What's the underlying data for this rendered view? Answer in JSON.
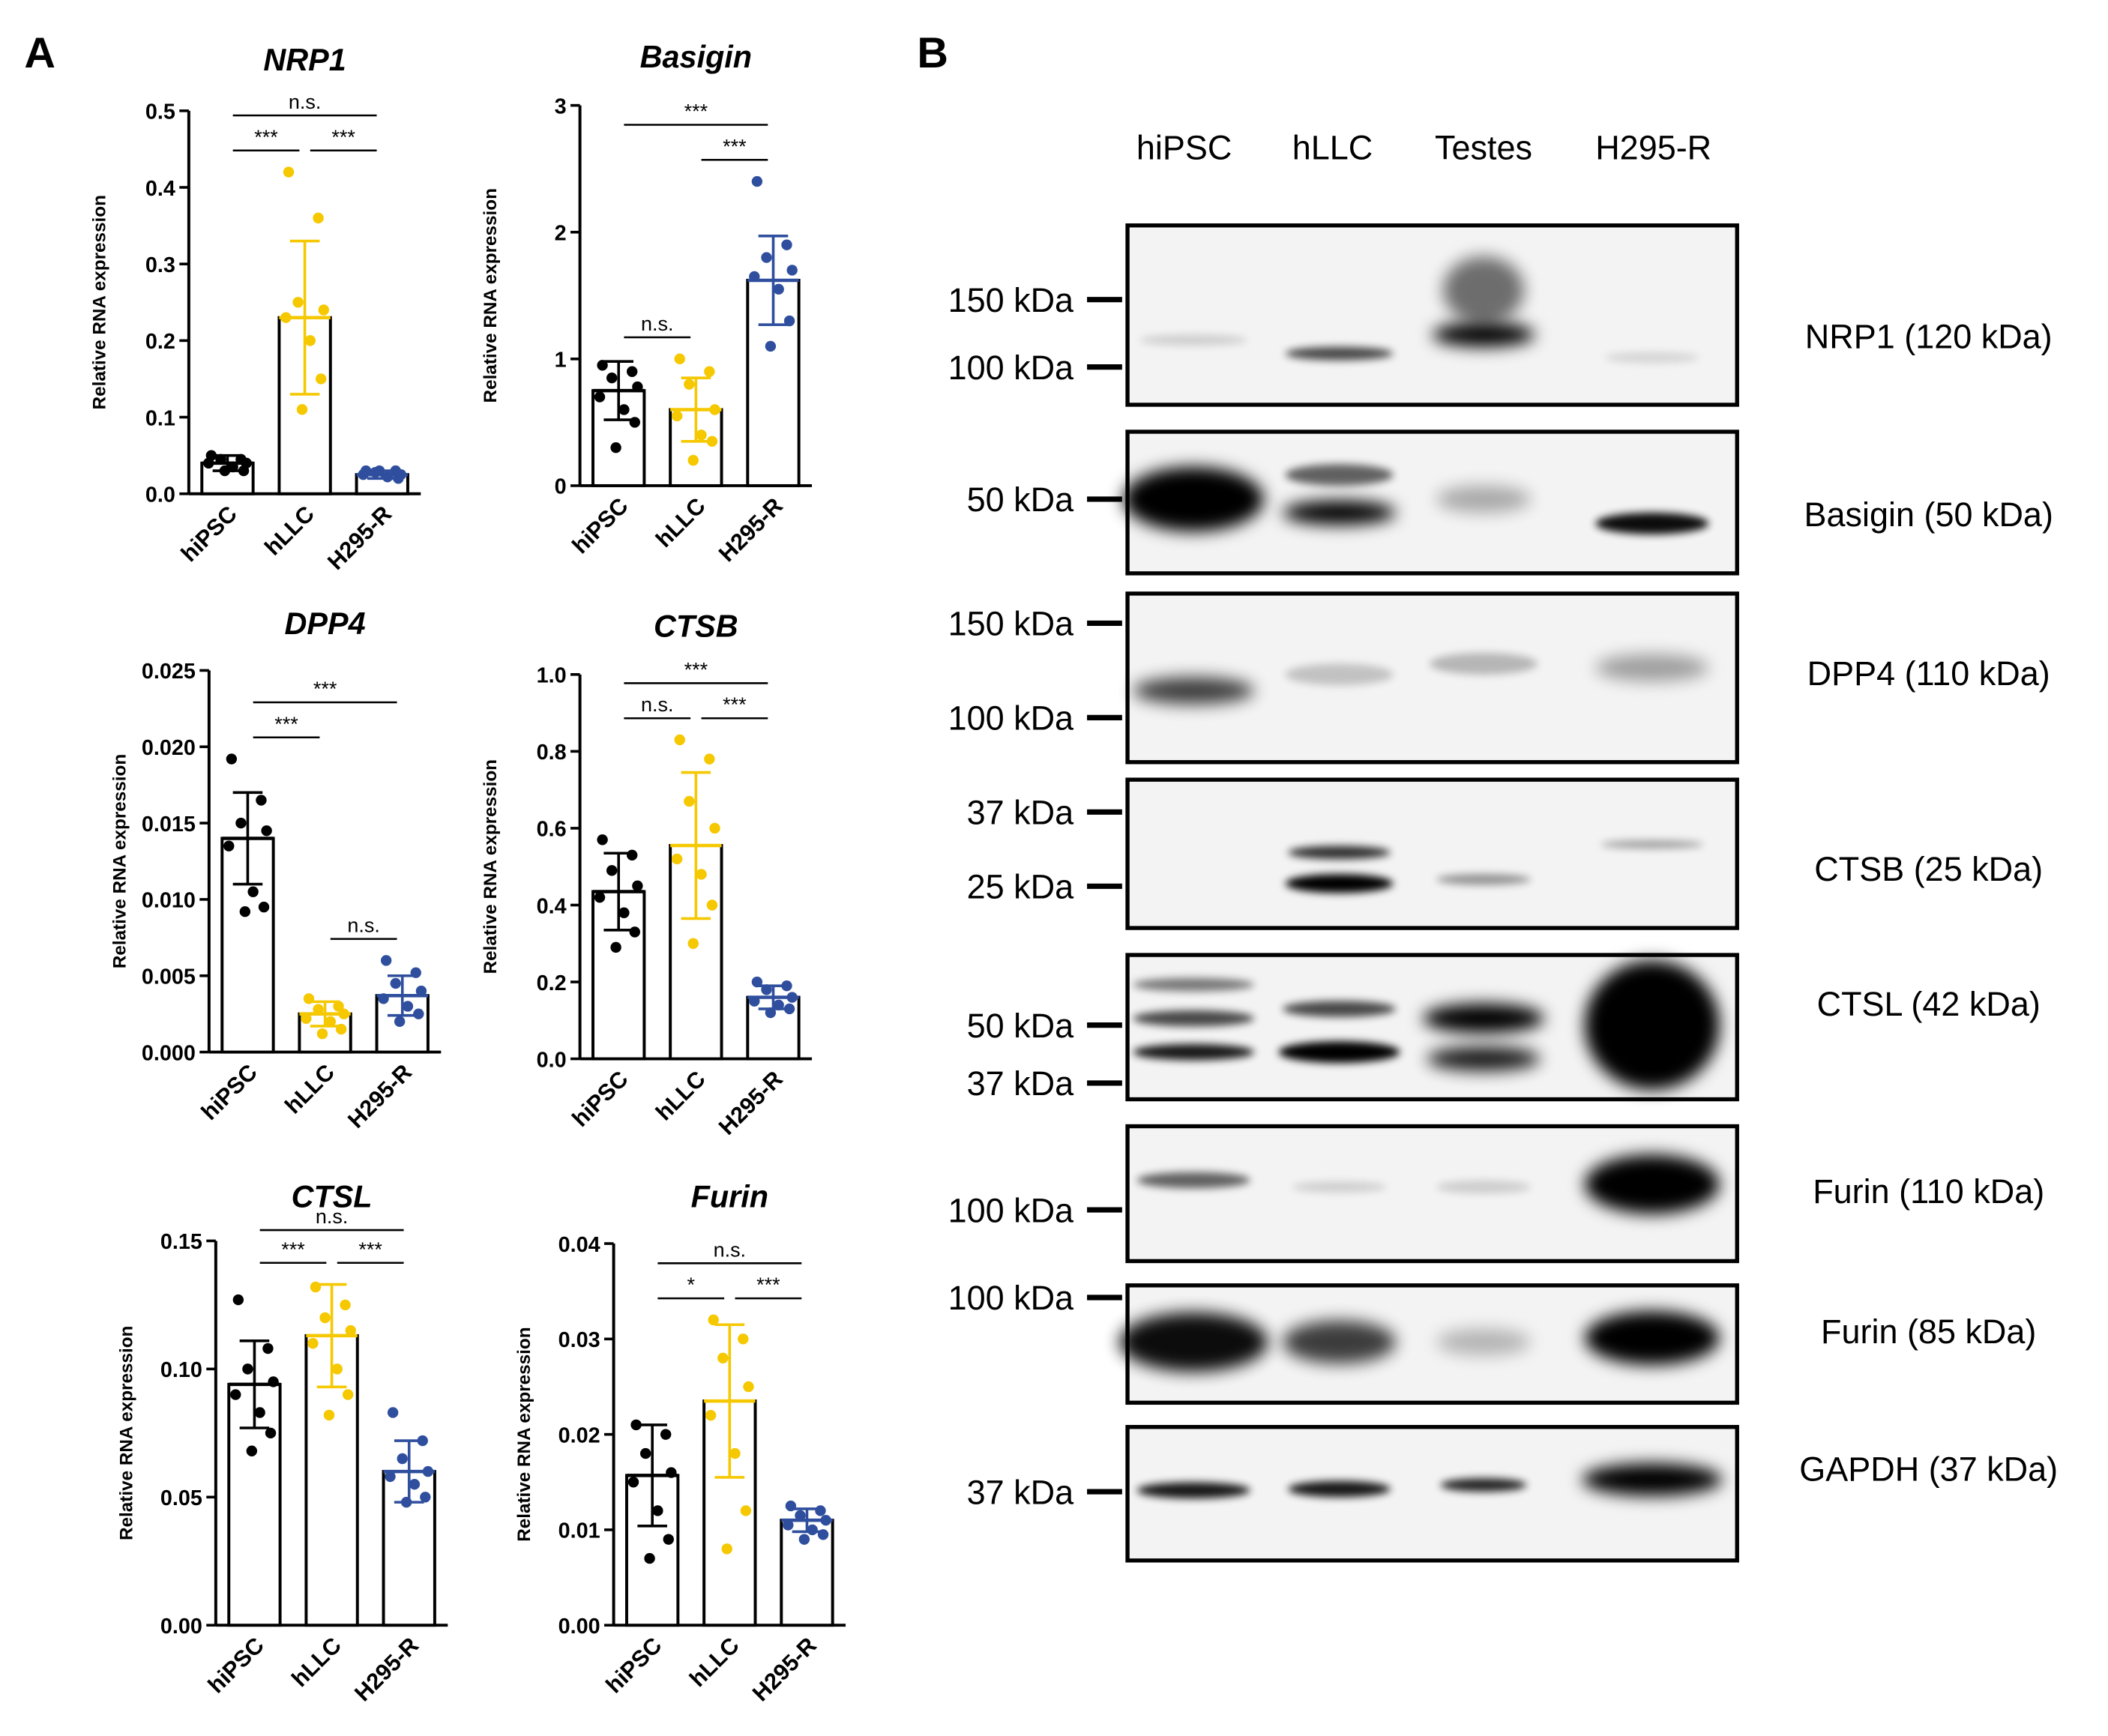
{
  "panel_labels": [
    "A",
    "B"
  ],
  "chart_data": [
    {
      "type": "bar",
      "title": "NRP1",
      "y_label": "Relative RNA expression",
      "categories": [
        "hiPSC",
        "hLLC",
        "H295-R"
      ],
      "colors": [
        "#000000",
        "#f5c800",
        "#2f4f9e"
      ],
      "values": [
        0.04,
        0.23,
        0.025
      ],
      "errors": [
        0.01,
        0.1,
        0.005
      ],
      "points": [
        [
          0.05,
          0.045,
          0.045,
          0.04,
          0.04,
          0.035,
          0.03,
          0.03
        ],
        [
          0.42,
          0.36,
          0.25,
          0.24,
          0.23,
          0.2,
          0.15,
          0.11
        ],
        [
          0.03,
          0.03,
          0.028,
          0.025,
          0.025,
          0.022,
          0.02,
          0.03
        ]
      ],
      "ylim": [
        0,
        0.5
      ],
      "yticks": [
        {
          "value": 0,
          "label": "0.0"
        },
        0.1,
        0.2,
        0.3,
        0.4,
        0.5
      ],
      "annotations": [
        {
          "pair": [
            "hiPSC",
            "H295-R"
          ],
          "label": "n.s."
        },
        {
          "pair": [
            "hiPSC",
            "hLLC"
          ],
          "label": "***"
        },
        {
          "pair": [
            "hLLC",
            "H295-R"
          ],
          "label": "***"
        }
      ]
    },
    {
      "type": "bar",
      "title": "Basigin",
      "y_label": "Relative RNA expression",
      "categories": [
        "hiPSC",
        "hLLC",
        "H295-R"
      ],
      "colors": [
        "#000000",
        "#f5c800",
        "#2f4f9e"
      ],
      "values": [
        0.75,
        0.6,
        1.62
      ],
      "errors": [
        0.23,
        0.25,
        0.35
      ],
      "points": [
        [
          0.95,
          0.9,
          0.85,
          0.78,
          0.7,
          0.6,
          0.5,
          0.3
        ],
        [
          1.0,
          0.9,
          0.8,
          0.6,
          0.55,
          0.4,
          0.35,
          0.2
        ],
        [
          2.4,
          1.9,
          1.8,
          1.7,
          1.65,
          1.55,
          1.3,
          1.1
        ]
      ],
      "ylim": [
        0,
        3
      ],
      "yticks": [
        0,
        1,
        2,
        3
      ],
      "annotations": [
        {
          "pair": [
            "hiPSC",
            "H295-R"
          ],
          "label": "***"
        },
        {
          "pair": [
            "hLLC",
            "H295-R"
          ],
          "label": "***"
        },
        {
          "pair": [
            "hiPSC",
            "hLLC"
          ],
          "label": "n.s."
        }
      ]
    },
    {
      "type": "bar",
      "title": "DPP4",
      "y_label": "Relative RNA expression",
      "categories": [
        "hiPSC",
        "hLLC",
        "H295-R"
      ],
      "colors": [
        "#000000",
        "#f5c800",
        "#2f4f9e"
      ],
      "values": [
        0.014,
        0.0025,
        0.0037
      ],
      "errors": [
        0.003,
        0.0008,
        0.0013
      ],
      "points": [
        [
          0.0192,
          0.0165,
          0.015,
          0.0145,
          0.0135,
          0.0105,
          0.0095,
          0.0092
        ],
        [
          0.0035,
          0.003,
          0.0028,
          0.0025,
          0.0022,
          0.002,
          0.0015,
          0.0012
        ],
        [
          0.006,
          0.0052,
          0.0045,
          0.004,
          0.0035,
          0.003,
          0.0025,
          0.002
        ]
      ],
      "ylim": [
        0,
        0.025
      ],
      "yticks": [
        {
          "value": 0,
          "label": "0.000"
        },
        0.005,
        {
          "value": 0.01,
          "label": "0.010"
        },
        0.015,
        {
          "value": 0.02,
          "label": "0.020"
        },
        0.025
      ],
      "annotations": [
        {
          "pair": [
            "hiPSC",
            "H295-R"
          ],
          "label": "***"
        },
        {
          "pair": [
            "hiPSC",
            "hLLC"
          ],
          "label": "***"
        },
        {
          "pair": [
            "hLLC",
            "H295-R"
          ],
          "label": "n.s."
        }
      ]
    },
    {
      "type": "bar",
      "title": "CTSB",
      "y_label": "Relative RNA expression",
      "categories": [
        "hiPSC",
        "hLLC",
        "H295-R"
      ],
      "colors": [
        "#000000",
        "#f5c800",
        "#2f4f9e"
      ],
      "values": [
        0.435,
        0.555,
        0.16
      ],
      "errors": [
        0.1,
        0.19,
        0.03
      ],
      "points": [
        [
          0.57,
          0.53,
          0.49,
          0.45,
          0.42,
          0.38,
          0.33,
          0.29
        ],
        [
          0.83,
          0.78,
          0.67,
          0.6,
          0.52,
          0.48,
          0.4,
          0.3
        ],
        [
          0.2,
          0.19,
          0.18,
          0.16,
          0.15,
          0.14,
          0.13,
          0.12
        ]
      ],
      "ylim": [
        0,
        1.0
      ],
      "yticks": [
        {
          "value": 0,
          "label": "0.0"
        },
        0.2,
        0.4,
        0.6,
        0.8,
        {
          "value": 1.0,
          "label": "1.0"
        }
      ],
      "annotations": [
        {
          "pair": [
            "hiPSC",
            "H295-R"
          ],
          "label": "***"
        },
        {
          "pair": [
            "hiPSC",
            "hLLC"
          ],
          "label": "n.s."
        },
        {
          "pair": [
            "hLLC",
            "H295-R"
          ],
          "label": "***"
        }
      ]
    },
    {
      "type": "bar",
      "title": "CTSL",
      "y_label": "Relative RNA expression",
      "categories": [
        "hiPSC",
        "hLLC",
        "H295-R"
      ],
      "colors": [
        "#000000",
        "#f5c800",
        "#2f4f9e"
      ],
      "values": [
        0.094,
        0.113,
        0.06
      ],
      "errors": [
        0.017,
        0.02,
        0.012
      ],
      "points": [
        [
          0.127,
          0.108,
          0.1,
          0.095,
          0.09,
          0.083,
          0.075,
          0.068
        ],
        [
          0.132,
          0.125,
          0.12,
          0.115,
          0.11,
          0.1,
          0.09,
          0.082
        ],
        [
          0.083,
          0.072,
          0.065,
          0.06,
          0.058,
          0.055,
          0.05,
          0.048
        ]
      ],
      "ylim": [
        0,
        0.15
      ],
      "yticks": [
        {
          "value": 0,
          "label": "0.00"
        },
        0.05,
        {
          "value": 0.1,
          "label": "0.10"
        },
        0.15
      ],
      "annotations": [
        {
          "pair": [
            "hiPSC",
            "H295-R"
          ],
          "label": "n.s."
        },
        {
          "pair": [
            "hiPSC",
            "hLLC"
          ],
          "label": "***"
        },
        {
          "pair": [
            "hLLC",
            "H295-R"
          ],
          "label": "***"
        }
      ]
    },
    {
      "type": "bar",
      "title": "Furin",
      "y_label": "Relative RNA expression",
      "categories": [
        "hiPSC",
        "hLLC",
        "H295-R"
      ],
      "colors": [
        "#000000",
        "#f5c800",
        "#2f4f9e"
      ],
      "values": [
        0.0157,
        0.0235,
        0.011
      ],
      "errors": [
        0.0053,
        0.008,
        0.0012
      ],
      "points": [
        [
          0.021,
          0.02,
          0.018,
          0.016,
          0.015,
          0.012,
          0.009,
          0.007
        ],
        [
          0.032,
          0.03,
          0.028,
          0.025,
          0.022,
          0.018,
          0.012,
          0.008
        ],
        [
          0.0125,
          0.012,
          0.0115,
          0.011,
          0.0105,
          0.01,
          0.0095,
          0.009
        ]
      ],
      "ylim": [
        0,
        0.04
      ],
      "yticks": [
        {
          "value": 0,
          "label": "0.00"
        },
        0.01,
        0.02,
        0.03,
        0.04
      ],
      "annotations": [
        {
          "pair": [
            "hiPSC",
            "H295-R"
          ],
          "label": "n.s."
        },
        {
          "pair": [
            "hiPSC",
            "hLLC"
          ],
          "label": "*"
        },
        {
          "pair": [
            "hLLC",
            "H295-R"
          ],
          "label": "***"
        }
      ]
    }
  ],
  "blot": {
    "lanes": [
      "hiPSC",
      "hLLC",
      "Testes",
      "H295-R"
    ],
    "rows": [
      {
        "label": "NRP1 (120 kDa)",
        "markers": [
          "150 kDa",
          "100 kDa"
        ]
      },
      {
        "label": "Basigin (50 kDa)",
        "markers": [
          "50 kDa"
        ]
      },
      {
        "label": "DPP4 (110 kDa)",
        "markers": [
          "150 kDa",
          "100 kDa"
        ]
      },
      {
        "label": "CTSB (25 kDa)",
        "markers": [
          "37 kDa",
          "25 kDa"
        ]
      },
      {
        "label": "CTSL (42 kDa)",
        "markers": [
          "50 kDa",
          "37 kDa"
        ]
      },
      {
        "label": "Furin (110 kDa)",
        "markers": [
          "100 kDa"
        ]
      },
      {
        "label": "Furin (85 kDa)",
        "markers": [
          "100 kDa"
        ]
      },
      {
        "label": "GAPDH (37 kDa)",
        "markers": [
          "37 kDa"
        ]
      }
    ]
  }
}
